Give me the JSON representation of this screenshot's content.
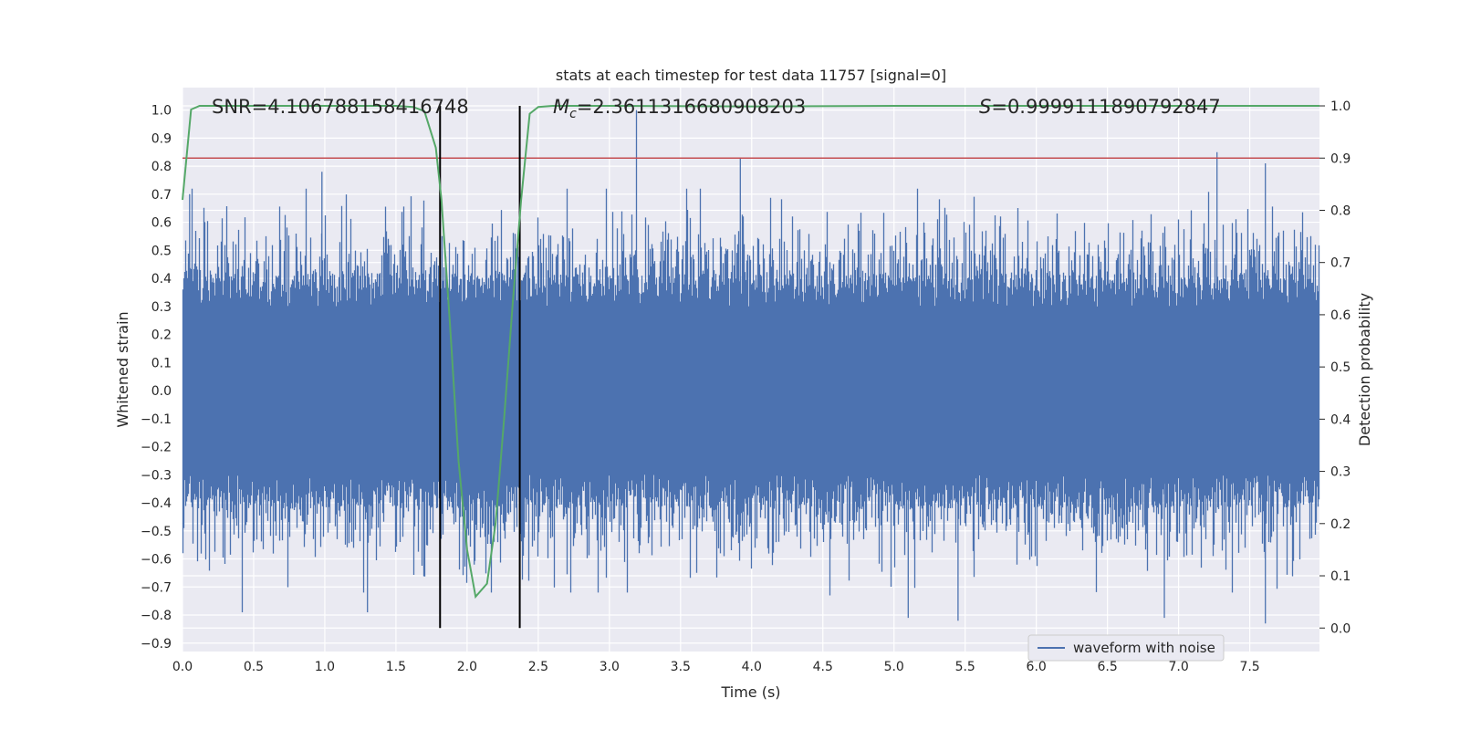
{
  "chart_data": {
    "type": "line",
    "title": "stats at each timestep for test data 11757 [signal=0]",
    "xlabel": "Time (s)",
    "ylabel_left": "Whitened strain",
    "ylabel_right": "Detection probability",
    "xlim": [
      0.0,
      7.99
    ],
    "ylim_left": [
      -0.93,
      1.08
    ],
    "ylim_right": [
      -0.045,
      1.035
    ],
    "grid": true,
    "x_ticks": [
      "0.0",
      "0.5",
      "1.0",
      "1.5",
      "2.0",
      "2.5",
      "3.0",
      "3.5",
      "4.0",
      "4.5",
      "5.0",
      "5.5",
      "6.0",
      "6.5",
      "7.0",
      "7.5"
    ],
    "y_ticks_left": [
      "1.0",
      "0.9",
      "0.8",
      "0.7",
      "0.6",
      "0.5",
      "0.4",
      "0.3",
      "0.2",
      "0.1",
      "0.0",
      "−0.1",
      "−0.2",
      "−0.3",
      "−0.4",
      "−0.5",
      "−0.6",
      "−0.7",
      "−0.8",
      "−0.9"
    ],
    "y_ticks_right": [
      "1.0",
      "0.9",
      "0.8",
      "0.7",
      "0.6",
      "0.5",
      "0.4",
      "0.3",
      "0.2",
      "0.1",
      "0.0"
    ],
    "annotations": {
      "snr": "SNR=4.106788158416748",
      "mc_symbol": "M",
      "mc_sub": "c",
      "mc_value": "=2.3611316680908203",
      "s_symbol": "S",
      "s_value": "=0.9999111890792847"
    },
    "legend": {
      "label": "waveform with noise",
      "position": "lower-right"
    },
    "series": [
      {
        "name": "waveform with noise",
        "axis": "left",
        "color": "#4c72b0",
        "style": "noise",
        "duration": 8.0,
        "sample_rate": 2048,
        "envelope": [
          0.3,
          0.55
        ],
        "peaks": [
          {
            "x": 0.05,
            "y": 0.7
          },
          {
            "x": 0.42,
            "y": -0.79
          },
          {
            "x": 0.98,
            "y": 0.78
          },
          {
            "x": 1.3,
            "y": -0.79
          },
          {
            "x": 2.05,
            "y": -0.62
          },
          {
            "x": 3.19,
            "y": 1.0
          },
          {
            "x": 3.92,
            "y": 0.83
          },
          {
            "x": 4.55,
            "y": -0.73
          },
          {
            "x": 5.1,
            "y": -0.81
          },
          {
            "x": 5.45,
            "y": -0.82
          },
          {
            "x": 6.9,
            "y": -0.81
          },
          {
            "x": 7.27,
            "y": 0.85
          },
          {
            "x": 7.61,
            "y": -0.83
          },
          {
            "x": 7.61,
            "y": 0.81
          }
        ]
      },
      {
        "name": "detection probability",
        "axis": "right",
        "color": "#55a868",
        "x": [
          0.0,
          0.06,
          0.12,
          0.2,
          0.5,
          1.0,
          1.5,
          1.62,
          1.7,
          1.78,
          1.82,
          1.88,
          1.94,
          2.0,
          2.06,
          2.14,
          2.2,
          2.26,
          2.32,
          2.38,
          2.44,
          2.5,
          2.6,
          3.0,
          4.0,
          5.0,
          6.0,
          7.0,
          7.99
        ],
        "y": [
          0.82,
          0.993,
          1.0,
          1.0,
          1.0,
          1.0,
          1.0,
          0.998,
          0.99,
          0.92,
          0.82,
          0.58,
          0.32,
          0.15,
          0.06,
          0.085,
          0.2,
          0.4,
          0.62,
          0.82,
          0.985,
          0.998,
          1.0,
          1.0,
          0.999,
          1.0,
          1.0,
          1.0,
          1.0
        ]
      }
    ],
    "threshold": {
      "axis": "right",
      "value": 0.9,
      "color": "#c44e52"
    },
    "vlines": [
      {
        "x": 1.81,
        "color": "#000000"
      },
      {
        "x": 2.37,
        "color": "#000000"
      }
    ]
  }
}
